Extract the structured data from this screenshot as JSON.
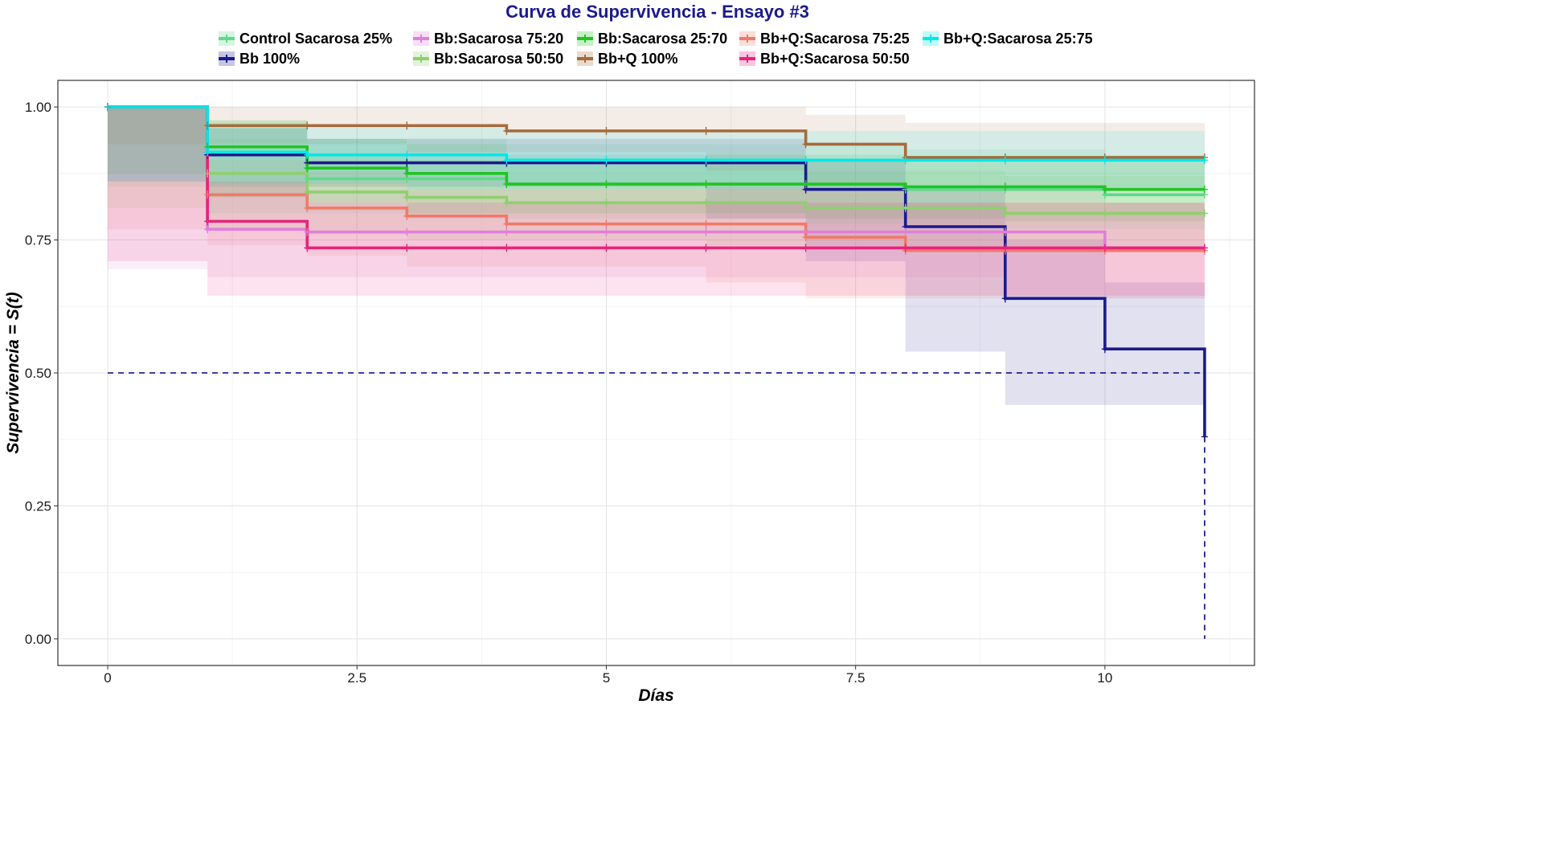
{
  "chart_data": {
    "type": "line",
    "title": "Curva de Supervivencia - Ensayo #3",
    "xlabel": "Días",
    "ylabel": "Supervivencia = S(t)",
    "xlim": [
      -0.5,
      11.5
    ],
    "ylim": [
      -0.05,
      1.05
    ],
    "x_ticks": [
      0,
      2.5,
      5,
      7.5,
      10
    ],
    "x_tick_labels": [
      "0",
      "2.5",
      "5",
      "7.5",
      "10"
    ],
    "y_ticks": [
      0,
      0.25,
      0.5,
      0.75,
      1
    ],
    "y_tick_labels": [
      "0.00",
      "0.25",
      "0.50",
      "0.75",
      "1.00"
    ],
    "grid": true,
    "legend_position": "top",
    "median_line": {
      "y": 0.5,
      "x_end": 11,
      "color": "#000080"
    },
    "series": [
      {
        "name": "Control  Sacarosa 25%",
        "color": "#5fd98a",
        "x": [
          0,
          1,
          2,
          3,
          4,
          5,
          6,
          7,
          8,
          9,
          10,
          11
        ],
        "y": [
          1,
          0.91,
          0.865,
          0.865,
          0.855,
          0.855,
          0.855,
          0.855,
          0.845,
          0.845,
          0.835,
          0.835
        ],
        "lower": [
          1,
          0.85,
          0.8,
          0.8,
          0.79,
          0.79,
          0.79,
          0.79,
          0.78,
          0.78,
          0.77,
          0.77
        ],
        "upper": [
          1,
          0.975,
          0.94,
          0.94,
          0.93,
          0.93,
          0.93,
          0.93,
          0.92,
          0.92,
          0.91,
          0.91
        ]
      },
      {
        "name": "Bb 100%",
        "color": "#1a1a8c",
        "x": [
          0,
          1,
          2,
          3,
          4,
          5,
          6,
          7,
          8,
          9,
          10,
          11
        ],
        "y": [
          1,
          0.91,
          0.895,
          0.895,
          0.895,
          0.895,
          0.895,
          0.845,
          0.775,
          0.64,
          0.545,
          0.38
        ],
        "lower": [
          1,
          0.86,
          0.85,
          0.85,
          0.85,
          0.85,
          0.85,
          0.79,
          0.71,
          0.54,
          0.44,
          0.44
        ],
        "upper": [
          1,
          0.96,
          0.94,
          0.94,
          0.94,
          0.94,
          0.94,
          0.9,
          0.845,
          0.75,
          0.67,
          0.67
        ]
      },
      {
        "name": "Bb:Sacarosa 75:20",
        "color": "#e07fd9",
        "x": [
          0,
          1,
          2,
          3,
          4,
          5,
          6,
          7,
          8,
          9,
          10,
          11
        ],
        "y": [
          1,
          0.77,
          0.765,
          0.765,
          0.765,
          0.765,
          0.765,
          0.765,
          0.765,
          0.765,
          0.735,
          0.735
        ],
        "lower": [
          1,
          0.695,
          0.68,
          0.68,
          0.68,
          0.68,
          0.68,
          0.68,
          0.68,
          0.68,
          0.64,
          0.64
        ],
        "upper": [
          1,
          0.85,
          0.845,
          0.845,
          0.845,
          0.845,
          0.845,
          0.845,
          0.845,
          0.845,
          0.82,
          0.82
        ]
      },
      {
        "name": "Bb:Sacarosa 50:50",
        "color": "#8fcf6f",
        "x": [
          0,
          1,
          2,
          3,
          4,
          5,
          6,
          7,
          8,
          9,
          10,
          11
        ],
        "y": [
          1,
          0.875,
          0.84,
          0.83,
          0.82,
          0.82,
          0.82,
          0.81,
          0.81,
          0.8,
          0.8,
          0.8
        ],
        "lower": [
          1,
          0.81,
          0.77,
          0.76,
          0.75,
          0.75,
          0.75,
          0.74,
          0.74,
          0.73,
          0.73,
          0.73
        ],
        "upper": [
          1,
          0.94,
          0.91,
          0.9,
          0.89,
          0.89,
          0.89,
          0.88,
          0.88,
          0.87,
          0.87,
          0.87
        ]
      },
      {
        "name": "Bb:Sacarosa 25:70",
        "color": "#22c422",
        "x": [
          0,
          1,
          2,
          3,
          4,
          5,
          6,
          7,
          8,
          9,
          10,
          11
        ],
        "y": [
          1,
          0.925,
          0.885,
          0.875,
          0.855,
          0.855,
          0.855,
          0.855,
          0.85,
          0.85,
          0.845,
          0.845
        ],
        "lower": [
          1,
          0.875,
          0.83,
          0.82,
          0.8,
          0.8,
          0.8,
          0.8,
          0.79,
          0.79,
          0.785,
          0.785
        ],
        "upper": [
          1,
          0.975,
          0.94,
          0.93,
          0.91,
          0.91,
          0.91,
          0.91,
          0.905,
          0.905,
          0.9,
          0.9
        ]
      },
      {
        "name": "Bb+Q 100%",
        "color": "#a86a3a",
        "x": [
          0,
          1,
          2,
          3,
          4,
          5,
          6,
          7,
          8,
          9,
          10,
          11
        ],
        "y": [
          1,
          0.965,
          0.965,
          0.965,
          0.955,
          0.955,
          0.955,
          0.93,
          0.905,
          0.905,
          0.905,
          0.905
        ],
        "lower": [
          1,
          0.93,
          0.93,
          0.93,
          0.915,
          0.915,
          0.915,
          0.88,
          0.845,
          0.845,
          0.845,
          0.845
        ],
        "upper": [
          1,
          1,
          1,
          1,
          1,
          1,
          1,
          0.985,
          0.97,
          0.97,
          0.97,
          0.97
        ]
      },
      {
        "name": "Bb+Q:Sacarosa 75:25",
        "color": "#f07a6a",
        "x": [
          0,
          1,
          2,
          3,
          4,
          5,
          6,
          7,
          8,
          9,
          10,
          11
        ],
        "y": [
          1,
          0.835,
          0.81,
          0.795,
          0.78,
          0.78,
          0.78,
          0.755,
          0.73,
          0.73,
          0.73,
          0.73
        ],
        "lower": [
          1,
          0.77,
          0.74,
          0.72,
          0.7,
          0.7,
          0.7,
          0.67,
          0.64,
          0.64,
          0.64,
          0.64
        ],
        "upper": [
          1,
          0.9,
          0.88,
          0.87,
          0.86,
          0.86,
          0.86,
          0.84,
          0.82,
          0.82,
          0.82,
          0.82
        ]
      },
      {
        "name": "Bb+Q:Sacarosa 50:50",
        "color": "#e8237a",
        "x": [
          0,
          1,
          2,
          3,
          4,
          5,
          6,
          7,
          8,
          9,
          10,
          11
        ],
        "y": [
          1,
          0.785,
          0.735,
          0.735,
          0.735,
          0.735,
          0.735,
          0.735,
          0.735,
          0.735,
          0.735,
          0.735
        ],
        "lower": [
          1,
          0.71,
          0.645,
          0.645,
          0.645,
          0.645,
          0.645,
          0.645,
          0.645,
          0.645,
          0.645,
          0.645
        ],
        "upper": [
          1,
          0.86,
          0.82,
          0.82,
          0.82,
          0.82,
          0.82,
          0.82,
          0.82,
          0.82,
          0.82,
          0.82
        ]
      },
      {
        "name": "Bb+Q:Sacarosa 25:75",
        "color": "#00e8e8",
        "x": [
          0,
          1,
          2,
          3,
          4,
          5,
          6,
          7,
          8,
          9,
          10,
          11
        ],
        "y": [
          1,
          0.915,
          0.91,
          0.91,
          0.9,
          0.9,
          0.9,
          0.9,
          0.9,
          0.9,
          0.9,
          0.9
        ],
        "lower": [
          1,
          0.86,
          0.855,
          0.855,
          0.845,
          0.845,
          0.845,
          0.845,
          0.845,
          0.845,
          0.845,
          0.845
        ],
        "upper": [
          1,
          0.97,
          0.965,
          0.965,
          0.955,
          0.955,
          0.955,
          0.955,
          0.955,
          0.955,
          0.955,
          0.955
        ]
      }
    ]
  }
}
